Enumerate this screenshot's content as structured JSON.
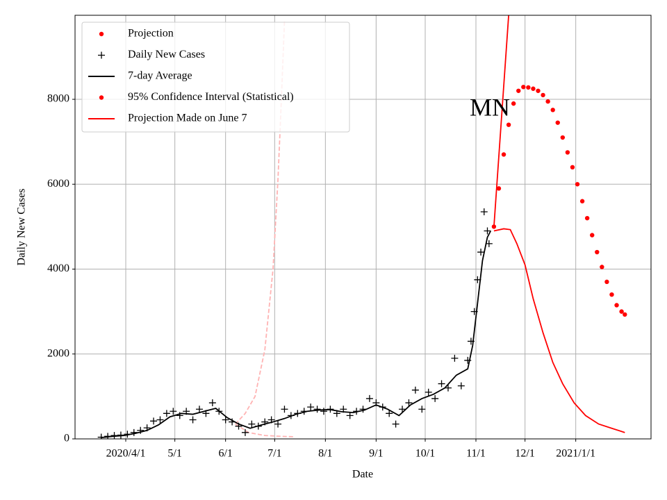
{
  "chart_data": {
    "type": "line",
    "xlabel": "Date",
    "ylabel": "Daily New Cases",
    "annotation": "MN",
    "xlim": [
      "2020-03-01",
      "2021-02-16"
    ],
    "ylim": [
      0,
      9980
    ],
    "grid": true,
    "legend_corner": "upper left",
    "xticks": [
      {
        "value": "2020-04-01",
        "label": "2020/4/1"
      },
      {
        "value": "2020-05-01",
        "label": "5/1"
      },
      {
        "value": "2020-06-01",
        "label": "6/1"
      },
      {
        "value": "2020-07-01",
        "label": "7/1"
      },
      {
        "value": "2020-08-01",
        "label": "8/1"
      },
      {
        "value": "2020-09-01",
        "label": "9/1"
      },
      {
        "value": "2020-10-01",
        "label": "10/1"
      },
      {
        "value": "2020-11-01",
        "label": "11/1"
      },
      {
        "value": "2020-12-01",
        "label": "12/1"
      },
      {
        "value": "2021-01-01",
        "label": "2021/1/1"
      }
    ],
    "yticks": [
      0,
      2000,
      4000,
      6000,
      8000
    ],
    "legend": [
      {
        "name": "Projection",
        "marker": "dots",
        "color": "#ff0000"
      },
      {
        "name": "Daily New Cases",
        "marker": "plus",
        "color": "#000000"
      },
      {
        "name": "7-day Average",
        "marker": "line",
        "color": "#000000"
      },
      {
        "name": "95% Confidence Interval (Statistical)",
        "marker": "dots",
        "color": "#ff0000"
      },
      {
        "name": "Projection Made on June 7",
        "marker": "line",
        "color": "#ff0000"
      }
    ],
    "series": [
      {
        "style": "dashed",
        "color": "#ffb3b3",
        "x": [
          "2020-06-07",
          "2020-06-13",
          "2020-06-19",
          "2020-06-25",
          "2020-06-30",
          "2020-07-03",
          "2020-07-05",
          "2020-07-07"
        ],
        "values": [
          350,
          600,
          1000,
          2100,
          4000,
          6100,
          7900,
          9850
        ]
      },
      {
        "style": "dashed",
        "color": "#ffb3b3",
        "x": [
          "2020-06-07",
          "2020-06-15",
          "2020-06-25",
          "2020-07-05",
          "2020-07-13"
        ],
        "values": [
          350,
          150,
          80,
          60,
          50
        ]
      },
      {
        "style": "plus",
        "color": "#000000",
        "x": [
          "2020-03-17",
          "2020-03-21",
          "2020-03-25",
          "2020-03-29",
          "2020-04-02",
          "2020-04-06",
          "2020-04-10",
          "2020-04-14",
          "2020-04-18",
          "2020-04-22",
          "2020-04-26",
          "2020-04-30",
          "2020-05-04",
          "2020-05-08",
          "2020-05-12",
          "2020-05-16",
          "2020-05-20",
          "2020-05-24",
          "2020-05-28",
          "2020-06-01",
          "2020-06-05",
          "2020-06-09",
          "2020-06-13",
          "2020-06-17",
          "2020-06-21",
          "2020-06-25",
          "2020-06-29",
          "2020-07-03",
          "2020-07-07",
          "2020-07-11",
          "2020-07-15",
          "2020-07-19",
          "2020-07-23",
          "2020-07-27",
          "2020-07-31",
          "2020-08-04",
          "2020-08-08",
          "2020-08-12",
          "2020-08-16",
          "2020-08-20",
          "2020-08-24",
          "2020-08-28",
          "2020-09-01",
          "2020-09-05",
          "2020-09-09",
          "2020-09-13",
          "2020-09-17",
          "2020-09-21",
          "2020-09-25",
          "2020-09-29",
          "2020-10-03",
          "2020-10-07",
          "2020-10-11",
          "2020-10-15",
          "2020-10-19",
          "2020-10-23",
          "2020-10-27",
          "2020-10-29",
          "2020-10-31",
          "2020-11-02",
          "2020-11-04",
          "2020-11-06",
          "2020-11-08",
          "2020-11-09"
        ],
        "values": [
          40,
          60,
          80,
          90,
          110,
          150,
          200,
          260,
          420,
          450,
          600,
          650,
          550,
          650,
          450,
          700,
          600,
          850,
          650,
          450,
          400,
          300,
          150,
          350,
          300,
          400,
          450,
          350,
          700,
          550,
          600,
          650,
          750,
          700,
          650,
          700,
          600,
          700,
          550,
          650,
          700,
          950,
          850,
          750,
          600,
          350,
          700,
          850,
          1150,
          700,
          1100,
          950,
          1300,
          1200,
          1900,
          1250,
          1850,
          2300,
          3000,
          3750,
          4400,
          5350,
          4900,
          4600
        ]
      },
      {
        "style": "line",
        "color": "#000000",
        "x": [
          "2020-03-17",
          "2020-03-24",
          "2020-03-31",
          "2020-04-07",
          "2020-04-14",
          "2020-04-21",
          "2020-04-28",
          "2020-05-05",
          "2020-05-12",
          "2020-05-19",
          "2020-05-26",
          "2020-06-02",
          "2020-06-09",
          "2020-06-16",
          "2020-06-23",
          "2020-06-30",
          "2020-07-07",
          "2020-07-14",
          "2020-07-21",
          "2020-07-28",
          "2020-08-04",
          "2020-08-11",
          "2020-08-18",
          "2020-08-25",
          "2020-09-01",
          "2020-09-08",
          "2020-09-15",
          "2020-09-22",
          "2020-09-29",
          "2020-10-06",
          "2020-10-13",
          "2020-10-20",
          "2020-10-27",
          "2020-10-30",
          "2020-11-02",
          "2020-11-05",
          "2020-11-08",
          "2020-11-10"
        ],
        "values": [
          30,
          60,
          80,
          130,
          200,
          330,
          520,
          600,
          580,
          650,
          720,
          500,
          350,
          250,
          330,
          400,
          480,
          580,
          650,
          680,
          690,
          640,
          620,
          680,
          800,
          700,
          550,
          800,
          950,
          1050,
          1200,
          1500,
          1650,
          2200,
          3200,
          4200,
          4750,
          4900
        ]
      },
      {
        "style": "line",
        "color": "#ff0000",
        "x": [
          "2020-11-12",
          "2020-11-21"
        ],
        "values": [
          5000,
          9980
        ]
      },
      {
        "style": "line",
        "color": "#ff0000",
        "x": [
          "2020-11-12",
          "2020-11-18",
          "2020-11-22",
          "2020-11-26",
          "2020-12-01",
          "2020-12-06",
          "2020-12-12",
          "2020-12-18",
          "2020-12-24",
          "2020-12-31",
          "2021-01-07",
          "2021-01-15",
          "2021-01-23",
          "2021-01-31"
        ],
        "values": [
          4900,
          4950,
          4930,
          4600,
          4100,
          3300,
          2500,
          1800,
          1300,
          850,
          550,
          350,
          250,
          150
        ]
      },
      {
        "style": "dots",
        "color": "#ff0000",
        "x": [
          "2020-11-12",
          "2020-11-15",
          "2020-11-18",
          "2020-11-21",
          "2020-11-24",
          "2020-11-27",
          "2020-11-30",
          "2020-12-03",
          "2020-12-06",
          "2020-12-09",
          "2020-12-12",
          "2020-12-15",
          "2020-12-18",
          "2020-12-21",
          "2020-12-24",
          "2020-12-27",
          "2020-12-30",
          "2021-01-02",
          "2021-01-05",
          "2021-01-08",
          "2021-01-11",
          "2021-01-14",
          "2021-01-17",
          "2021-01-20",
          "2021-01-23",
          "2021-01-26",
          "2021-01-29",
          "2021-01-31"
        ],
        "values": [
          5000,
          5900,
          6700,
          7400,
          7900,
          8200,
          8290,
          8280,
          8250,
          8200,
          8100,
          7950,
          7750,
          7450,
          7100,
          6750,
          6400,
          6000,
          5600,
          5200,
          4800,
          4400,
          4050,
          3700,
          3400,
          3150,
          3000,
          2930
        ]
      }
    ]
  }
}
